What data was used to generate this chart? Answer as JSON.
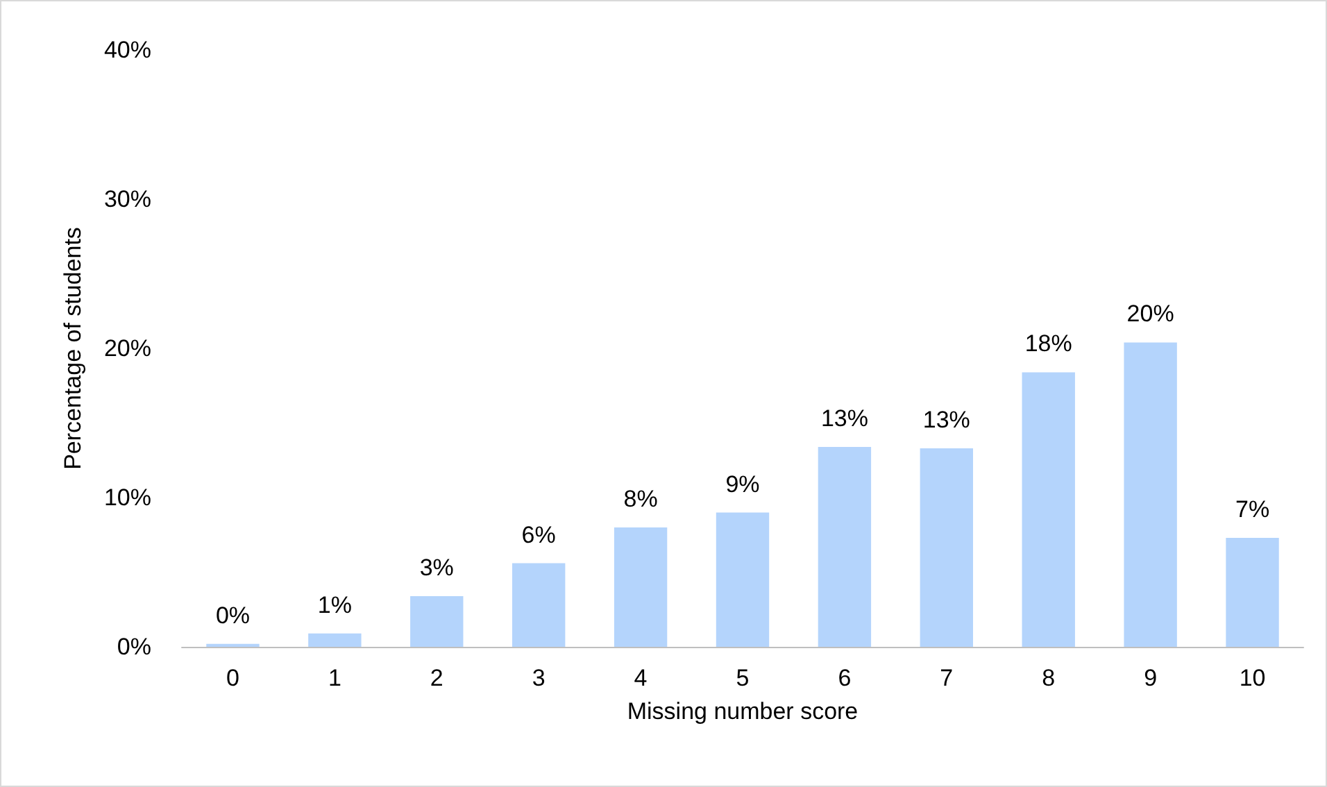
{
  "chart_data": {
    "type": "bar",
    "xlabel": "Missing number score",
    "ylabel": "Percentage of students",
    "categories": [
      "0",
      "1",
      "2",
      "3",
      "4",
      "5",
      "6",
      "7",
      "8",
      "9",
      "10"
    ],
    "values": [
      0.2,
      0.9,
      3.4,
      5.6,
      8.0,
      9.0,
      13.4,
      13.3,
      18.4,
      20.4,
      7.3
    ],
    "value_labels": [
      "0%",
      "1%",
      "3%",
      "6%",
      "8%",
      "9%",
      "13%",
      "13%",
      "18%",
      "20%",
      "7%"
    ],
    "color": "#b4d4fc",
    "ylim": [
      0,
      40
    ],
    "yticks": [
      {
        "value": 0,
        "label": "0%"
      },
      {
        "value": 10,
        "label": "10%"
      },
      {
        "value": 20,
        "label": "20%"
      },
      {
        "value": 30,
        "label": "30%"
      },
      {
        "value": 40,
        "label": "40%"
      }
    ],
    "grid": false
  }
}
